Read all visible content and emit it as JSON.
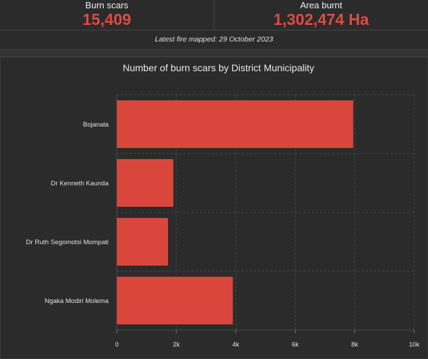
{
  "kpis": {
    "burn_scars": {
      "label": "Burn scars",
      "value": "15,409"
    },
    "area_burnt": {
      "label": "Area burnt",
      "value": "1,302,474 Ha"
    }
  },
  "latest_fire": "Latest fire mapped: 29 October 2023",
  "colors": {
    "accent": "#e04a3f",
    "bar": "#d9473c",
    "background": "#2b2b2b",
    "grid": "#4a4a4a"
  },
  "chart_data": {
    "type": "bar",
    "orientation": "horizontal",
    "title": "Number of burn scars by District Municipality",
    "categories": [
      "Bojanala",
      "Dr Kenneth Kaunda",
      "Dr Ruth Segomotsi Mompati",
      "Ngaka Modiri Molema"
    ],
    "values": [
      7950,
      1900,
      1720,
      3900
    ],
    "xlim": [
      0,
      10000
    ],
    "xticks": [
      0,
      2000,
      4000,
      6000,
      8000,
      10000
    ],
    "xtick_labels": [
      "0",
      "2k",
      "4k",
      "6k",
      "8k",
      "10k"
    ],
    "grid": true
  }
}
